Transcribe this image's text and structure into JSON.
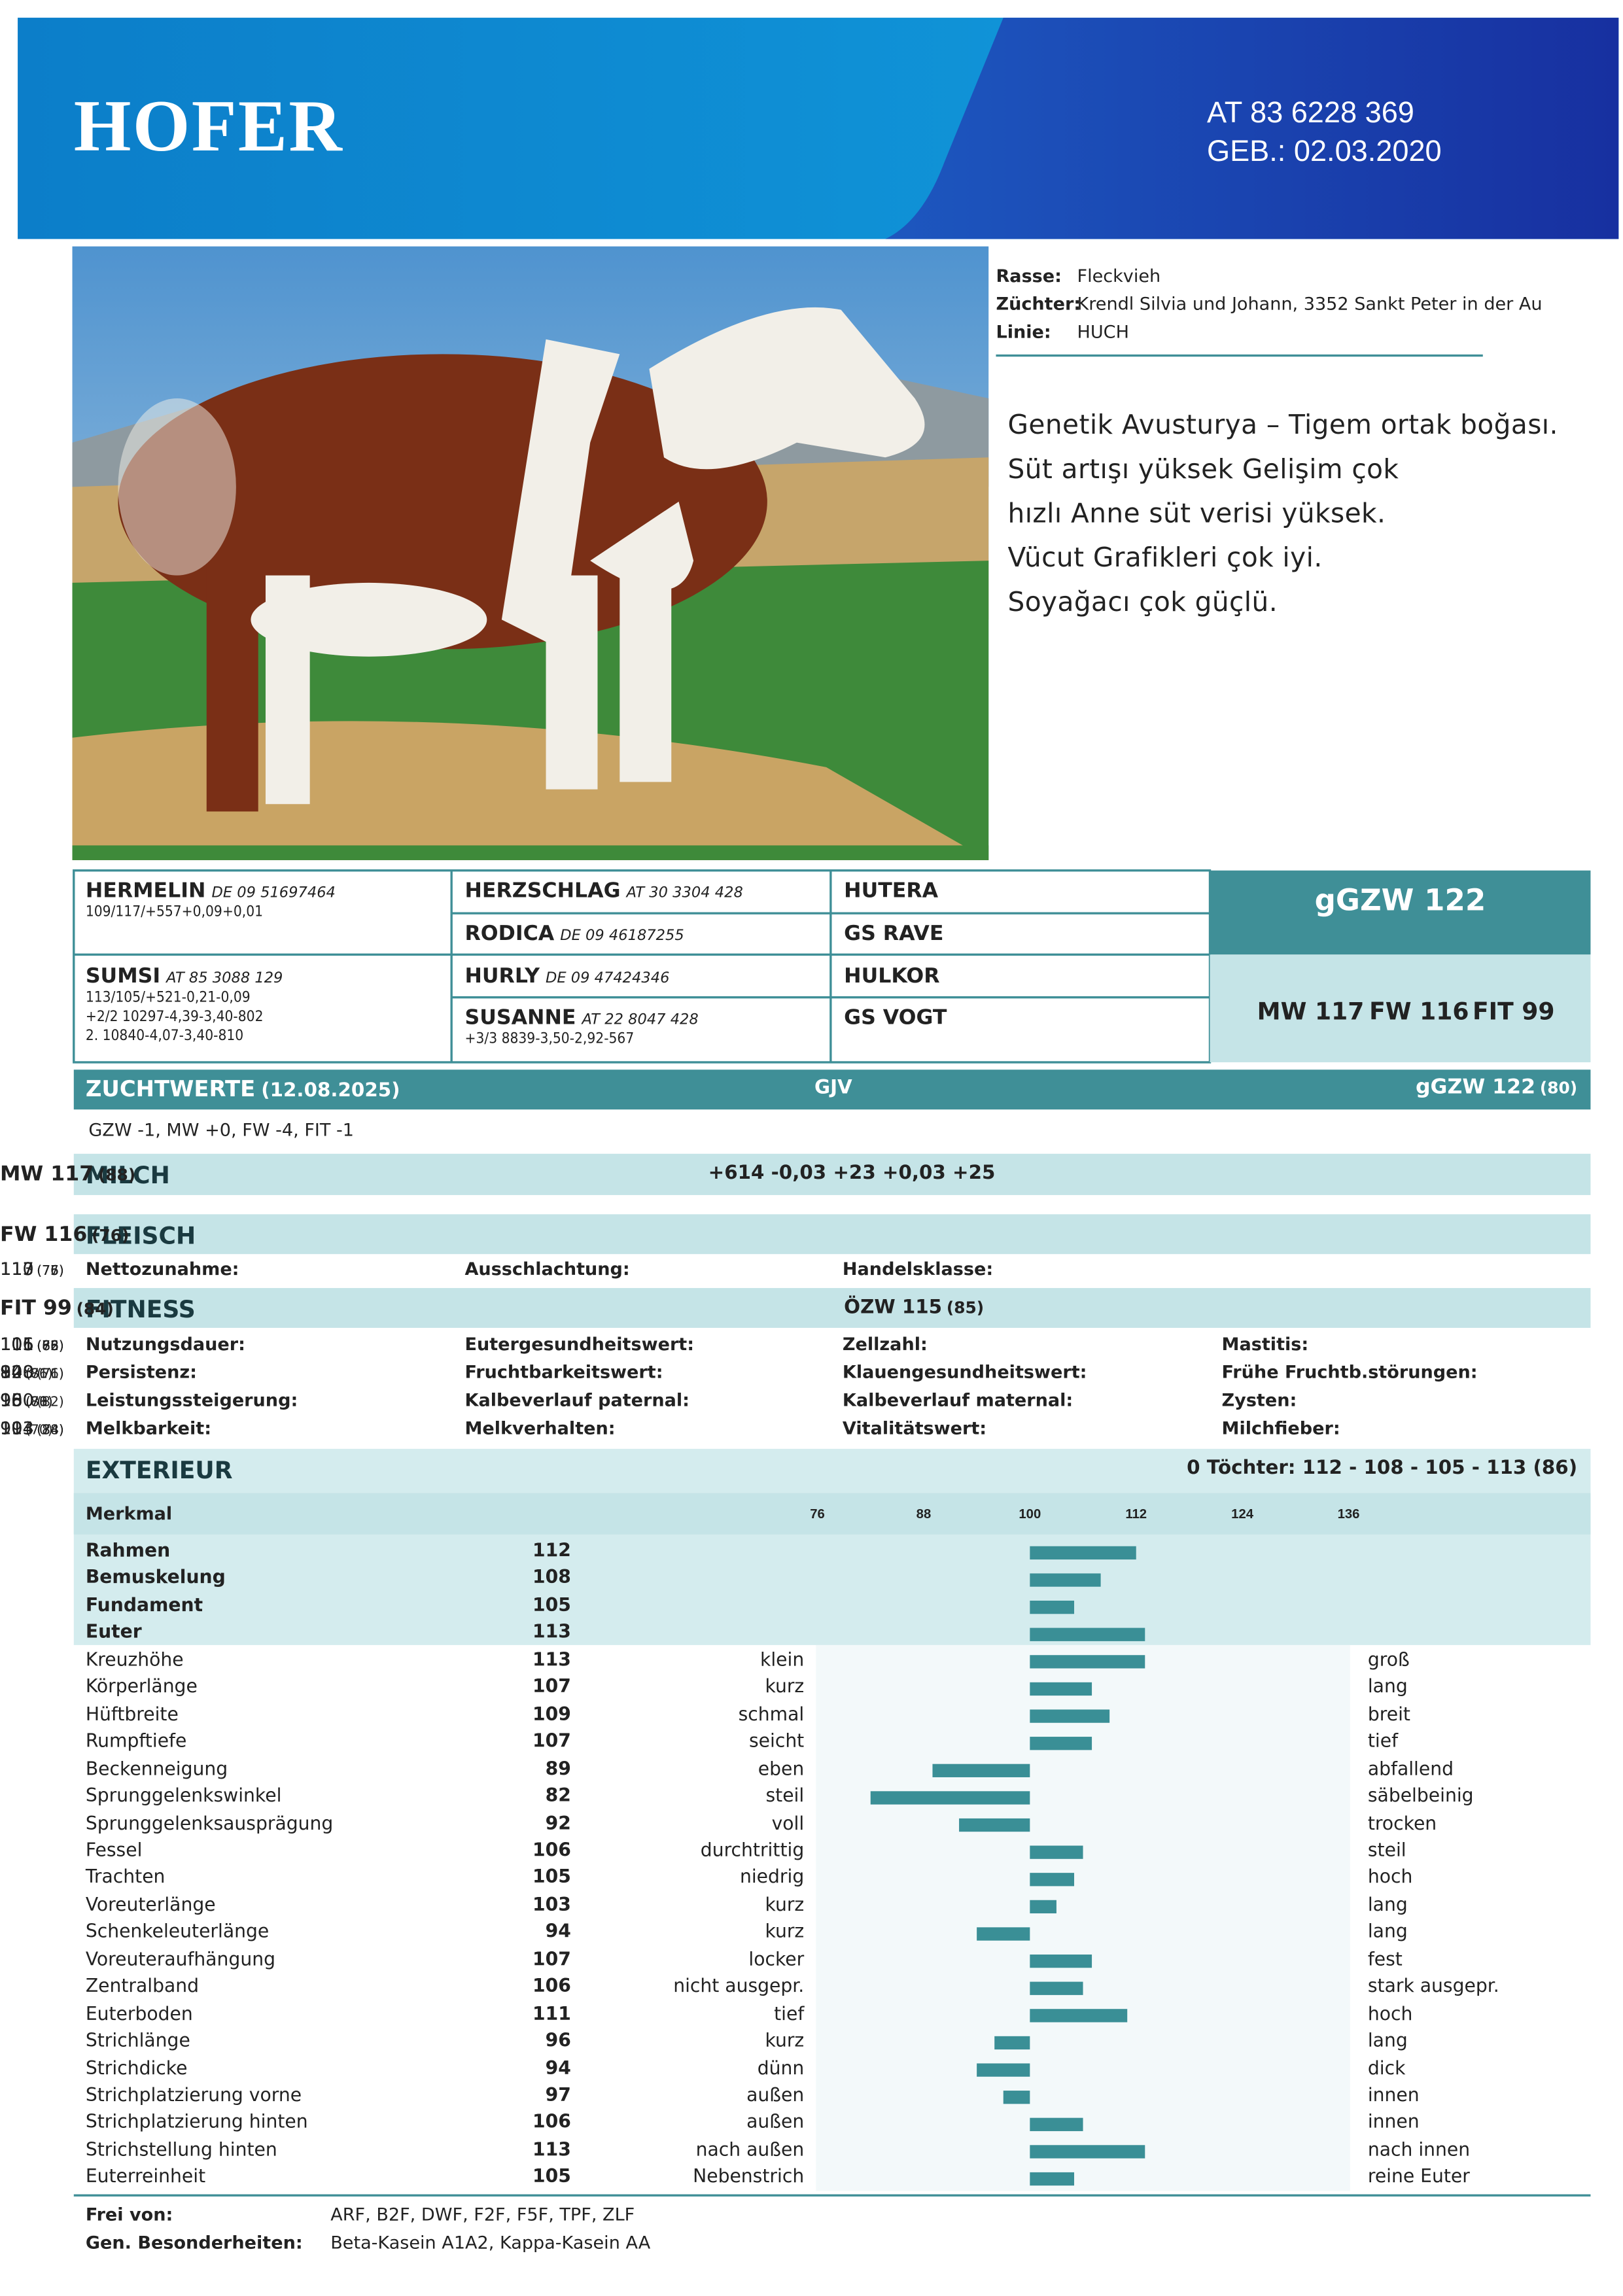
{
  "header": {
    "name": "HOFER",
    "id": "AT 83 6228 369",
    "birth": "GEB.: 02.03.2020"
  },
  "info": [
    {
      "label": "Rasse:",
      "value": "Fleckvieh"
    },
    {
      "label": "Züchter:",
      "value": "Krendl Silvia und Johann, 3352 Sankt Peter in der Au"
    },
    {
      "label": "Linie:",
      "value": "HUCH"
    }
  ],
  "description": [
    "Genetik Avusturya – Tigem ortak boğası.",
    "Süt artışı yüksek Gelişim çok",
    "hızlı Anne süt verisi yüksek.",
    "Vücut Grafikleri çok iyi.",
    "Soyağacı çok güçlü."
  ],
  "pedigree": {
    "col1": [
      {
        "name": "HERMELIN",
        "id": "DE 09 51697464",
        "lines": [
          "109/117/+557+0,09+0,01"
        ]
      },
      {
        "name": "SUMSI",
        "id": "AT 85 3088 129",
        "lines": [
          "113/105/+521-0,21-0,09",
          "+2/2 10297-4,39-3,40-802",
          "2. 10840-4,07-3,40-810"
        ]
      }
    ],
    "col2": [
      {
        "name": "HERZSCHLAG",
        "id": "AT 30 3304 428"
      },
      {
        "name": "RODICA",
        "id": "DE 09 46187255"
      },
      {
        "name": "HURLY",
        "id": "DE 09 47424346"
      },
      {
        "name": "SUSANNE",
        "id": "AT 22 8047 428",
        "lines": [
          "+3/3 8839-3,50-2,92-567"
        ]
      }
    ],
    "col3": [
      "HUTERA",
      "GS RAVE",
      "HULKOR",
      "GS VOGT"
    ],
    "total": "gGZW 122",
    "sub": [
      "MW 117",
      "FW 116",
      "FIT 99"
    ]
  },
  "zuchtwerte": {
    "title": "ZUCHTWERTE",
    "date": "(12.08.2025)",
    "source": "GJV",
    "total": "gGZW 122",
    "total_rel": "(80)",
    "note": "GZW -1, MW +0, FW -4, FIT -1"
  },
  "milch": {
    "title": "MILCH",
    "values": "+614 -0,03 +23 +0,03 +25",
    "index": "MW 117",
    "rel": "(88)"
  },
  "fleisch": {
    "title": "FLEISCH",
    "index": "FW 116",
    "rel": "(76)",
    "traits": [
      {
        "label": "Nettozunahme:",
        "value": 117,
        "rel": "(77)"
      },
      {
        "label": "Ausschlachtung:",
        "value": 113,
        "rel": "(76)"
      },
      {
        "label": "Handelsklasse:",
        "value": 110,
        "rel": "(75)"
      }
    ]
  },
  "fitness": {
    "title": "FITNESS",
    "mid": "ÖZW 115",
    "mid_rel": "(85)",
    "index": "FIT 99",
    "rel": "(84)",
    "columns": [
      [
        {
          "label": "Nutzungsdauer:",
          "value": 106,
          "rel": "(75)"
        },
        {
          "label": "Persistenz:",
          "value": 92,
          "rel": "(81)"
        },
        {
          "label": "Leistungssteigerung:",
          "value": 96,
          "rel": "(80)"
        },
        {
          "label": "Melkbarkeit:",
          "value": 104,
          "rel": "(88)"
        }
      ],
      [
        {
          "label": "Eutergesundheitswert:",
          "value": 111,
          "rel": "(86)"
        },
        {
          "label": "Fruchtbarkeitswert:",
          "value": 84,
          "rel": "(76)"
        },
        {
          "label": "Kalbeverlauf paternal:",
          "value": 100,
          "rel": "(82)"
        },
        {
          "label": "Melkverhalten:",
          "value": 99,
          "rel": "(70)"
        }
      ],
      [
        {
          "label": "Zellzahl:",
          "value": 111,
          "rel": "(82)"
        },
        {
          "label": "Klauengesundheitswert:",
          "value": 108,
          "rel": "(76)"
        },
        {
          "label": "Kalbeverlauf maternal:",
          "value": 98,
          "rel": "(78)"
        },
        {
          "label": "Vitalitätswert:",
          "value": 113,
          "rel": "(74)"
        }
      ],
      [
        {
          "label": "Mastitis:",
          "value": 105,
          "rel": "(68)"
        },
        {
          "label": "Frühe Fruchtb.störungen:",
          "value": 100,
          "rel": "(71)"
        },
        {
          "label": "Zysten:",
          "value": 95,
          "rel": "(71)"
        },
        {
          "label": "Milchfieber:",
          "value": 103,
          "rel": "(34)"
        }
      ]
    ]
  },
  "exterieur": {
    "title": "EXTERIEUR",
    "daughters": "0 Töchter: 112 - 108 - 105 - 113 (86)",
    "header": "Merkmal",
    "ticks": [
      76,
      88,
      100,
      112,
      124,
      136
    ],
    "traits": [
      {
        "name": "Rahmen",
        "value": 112
      },
      {
        "name": "Bemuskelung",
        "value": 108
      },
      {
        "name": "Fundament",
        "value": 105
      },
      {
        "name": "Euter",
        "value": 113
      },
      {
        "name": "Kreuzhöhe",
        "value": 113,
        "low": "klein",
        "high": "groß"
      },
      {
        "name": "Körperlänge",
        "value": 107,
        "low": "kurz",
        "high": "lang"
      },
      {
        "name": "Hüftbreite",
        "value": 109,
        "low": "schmal",
        "high": "breit"
      },
      {
        "name": "Rumpftiefe",
        "value": 107,
        "low": "seicht",
        "high": "tief"
      },
      {
        "name": "Beckenneigung",
        "value": 89,
        "low": "eben",
        "high": "abfallend"
      },
      {
        "name": "Sprunggelenkswinkel",
        "value": 82,
        "low": "steil",
        "high": "säbelbeinig"
      },
      {
        "name": "Sprunggelenksausprägung",
        "value": 92,
        "low": "voll",
        "high": "trocken"
      },
      {
        "name": "Fessel",
        "value": 106,
        "low": "durchtrittig",
        "high": "steil"
      },
      {
        "name": "Trachten",
        "value": 105,
        "low": "niedrig",
        "high": "hoch"
      },
      {
        "name": "Voreuterlänge",
        "value": 103,
        "low": "kurz",
        "high": "lang"
      },
      {
        "name": "Schenkeleuterlänge",
        "value": 94,
        "low": "kurz",
        "high": "lang"
      },
      {
        "name": "Voreuteraufhängung",
        "value": 107,
        "low": "locker",
        "high": "fest"
      },
      {
        "name": "Zentralband",
        "value": 106,
        "low": "nicht ausgepr.",
        "high": "stark ausgepr."
      },
      {
        "name": "Euterboden",
        "value": 111,
        "low": "tief",
        "high": "hoch"
      },
      {
        "name": "Strichlänge",
        "value": 96,
        "low": "kurz",
        "high": "lang"
      },
      {
        "name": "Strichdicke",
        "value": 94,
        "low": "dünn",
        "high": "dick"
      },
      {
        "name": "Strichplatzierung vorne",
        "value": 97,
        "low": "außen",
        "high": "innen"
      },
      {
        "name": "Strichplatzierung hinten",
        "value": 106,
        "low": "außen",
        "high": "innen"
      },
      {
        "name": "Strichstellung hinten",
        "value": 113,
        "low": "nach außen",
        "high": "nach innen"
      },
      {
        "name": "Euterreinheit",
        "value": 105,
        "low": "Nebenstrich",
        "high": "reine Euter"
      }
    ]
  },
  "footer": [
    {
      "label": "Frei von:",
      "value": "ARF, B2F, DWF, F2F, F5F, TPF, ZLF"
    },
    {
      "label": "Gen. Besonderheiten:",
      "value": "Beta-Kasein A1A2, Kappa-Kasein AA"
    }
  ]
}
